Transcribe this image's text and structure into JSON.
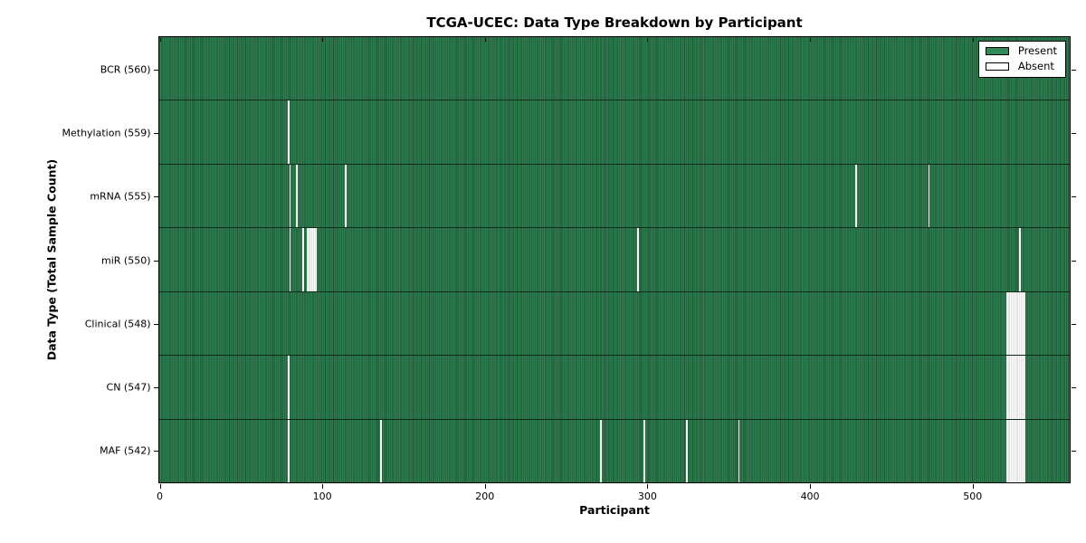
{
  "chart_data": {
    "type": "heatmap",
    "title": "TCGA-UCEC: Data Type Breakdown by Participant",
    "xlabel": "Participant",
    "ylabel": "Data Type (Total Sample Count)",
    "xlim": [
      0,
      560
    ],
    "x_ticks": [
      0,
      100,
      200,
      300,
      400,
      500
    ],
    "total_participants": 560,
    "grid": false,
    "legend_position": "upper right",
    "legend": [
      {
        "label": "Present",
        "color": "#2e8b57"
      },
      {
        "label": "Absent",
        "color": "#ffffff"
      }
    ],
    "colors": {
      "present_fill": "#2e7d4e",
      "present_edge": "#1b5434",
      "absent_fill": "#ffffff",
      "absent_edge": "#c4c4c4",
      "axis": "#000000"
    },
    "rows": [
      {
        "name": "BCR",
        "label": "BCR (560)",
        "present_count": 560,
        "absent_ranges": []
      },
      {
        "name": "Methylation",
        "label": "Methylation (559)",
        "present_count": 559,
        "absent_ranges": [
          [
            79,
            79
          ]
        ]
      },
      {
        "name": "mRNA",
        "label": "mRNA (555)",
        "present_count": 555,
        "absent_ranges": [
          [
            80,
            80
          ],
          [
            84,
            84
          ],
          [
            114,
            114
          ],
          [
            428,
            428
          ],
          [
            473,
            473
          ]
        ]
      },
      {
        "name": "miR",
        "label": "miR (550)",
        "present_count": 550,
        "absent_ranges": [
          [
            80,
            80
          ],
          [
            88,
            88
          ],
          [
            91,
            96
          ],
          [
            294,
            294
          ],
          [
            529,
            529
          ]
        ]
      },
      {
        "name": "Clinical",
        "label": "Clinical (548)",
        "present_count": 548,
        "absent_ranges": [
          [
            521,
            532
          ]
        ]
      },
      {
        "name": "CN",
        "label": "CN (547)",
        "present_count": 547,
        "absent_ranges": [
          [
            79,
            79
          ],
          [
            521,
            532
          ]
        ]
      },
      {
        "name": "MAF",
        "label": "MAF (542)",
        "present_count": 542,
        "absent_ranges": [
          [
            79,
            79
          ],
          [
            136,
            136
          ],
          [
            271,
            271
          ],
          [
            298,
            298
          ],
          [
            324,
            324
          ],
          [
            356,
            356
          ],
          [
            521,
            532
          ]
        ]
      }
    ]
  }
}
